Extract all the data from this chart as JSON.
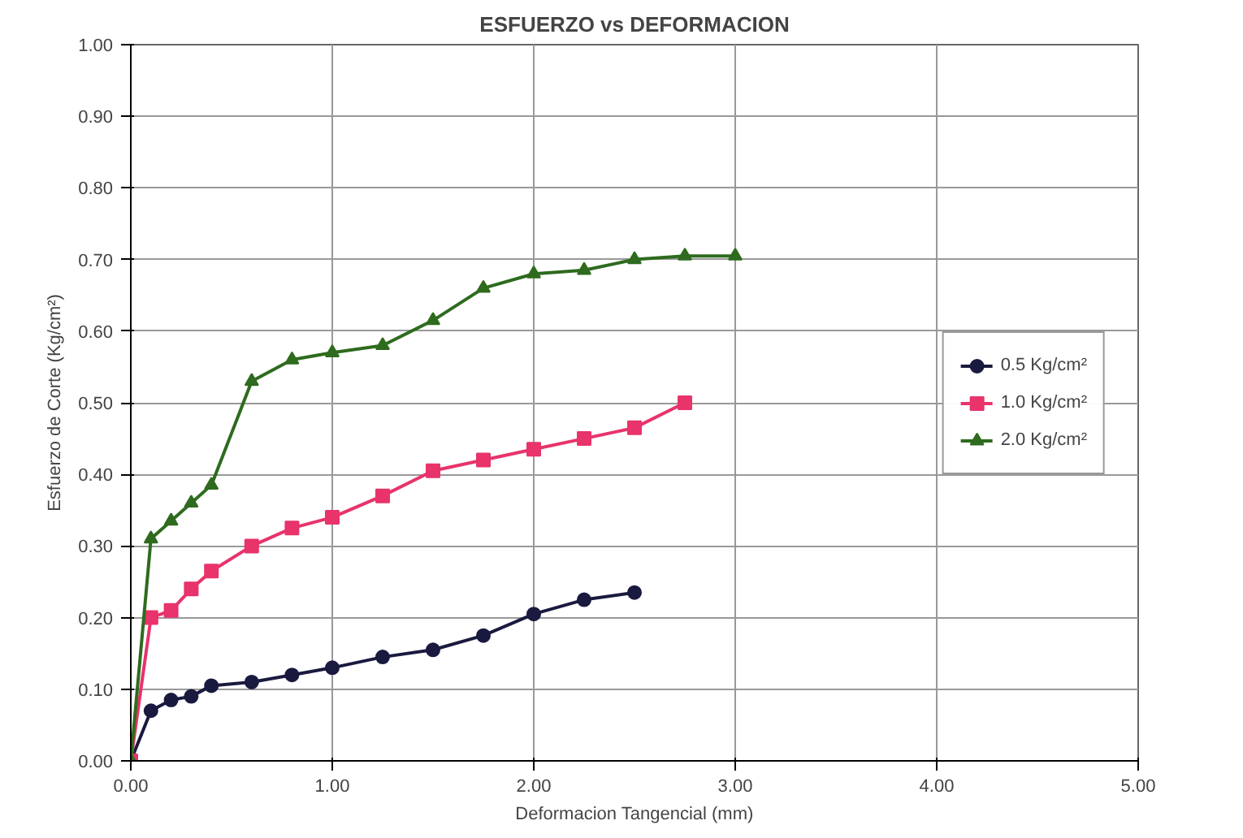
{
  "chart_data": {
    "type": "line",
    "title": "ESFUERZO vs DEFORMACION",
    "xlabel": "Deformacion Tangencial (mm)",
    "ylabel": "Esfuerzo de Corte (Kg/cm²)",
    "x": [
      0,
      0.1,
      0.2,
      0.3,
      0.4,
      0.6,
      0.8,
      1.0,
      1.25,
      1.5,
      1.75,
      2.0,
      2.25,
      2.5,
      2.75,
      3.0
    ],
    "series": [
      {
        "name": "0.5 Kg/cm²",
        "color": "#1a1a40",
        "marker": "circle",
        "values": [
          0,
          0.07,
          0.085,
          0.09,
          0.105,
          0.11,
          0.12,
          0.13,
          0.145,
          0.155,
          0.175,
          0.205,
          0.225,
          0.235,
          null,
          null
        ]
      },
      {
        "name": "1.0 Kg/cm²",
        "color": "#e8336b",
        "marker": "square",
        "values": [
          0,
          0.2,
          0.21,
          0.24,
          0.265,
          0.3,
          0.325,
          0.34,
          0.37,
          0.405,
          0.42,
          0.435,
          0.45,
          0.465,
          0.5,
          null
        ]
      },
      {
        "name": "2.0 Kg/cm²",
        "color": "#2e6b1e",
        "marker": "triangle",
        "values": [
          0,
          0.31,
          0.335,
          0.36,
          0.385,
          0.53,
          0.56,
          0.57,
          0.58,
          0.615,
          0.66,
          0.68,
          0.685,
          0.7,
          0.705,
          0.705
        ]
      }
    ],
    "xlim": [
      0,
      5
    ],
    "ylim": [
      0,
      1
    ],
    "xticks": [
      {
        "value": 0,
        "label": "0.00"
      },
      {
        "value": 1,
        "label": "1.00"
      },
      {
        "value": 2,
        "label": "2.00"
      },
      {
        "value": 3,
        "label": "3.00"
      },
      {
        "value": 4,
        "label": "4.00"
      },
      {
        "value": 5,
        "label": "5.00"
      }
    ],
    "yticks": [
      {
        "value": 0,
        "label": "0.00"
      },
      {
        "value": 0.1,
        "label": "0.10"
      },
      {
        "value": 0.2,
        "label": "0.20"
      },
      {
        "value": 0.3,
        "label": "0.30"
      },
      {
        "value": 0.4,
        "label": "0.40"
      },
      {
        "value": 0.5,
        "label": "0.50"
      },
      {
        "value": 0.6,
        "label": "0.60"
      },
      {
        "value": 0.7,
        "label": "0.70"
      },
      {
        "value": 0.8,
        "label": "0.80"
      },
      {
        "value": 0.9,
        "label": "0.90"
      },
      {
        "value": 1,
        "label": "1.00"
      }
    ],
    "grid": true,
    "legend": "right"
  }
}
